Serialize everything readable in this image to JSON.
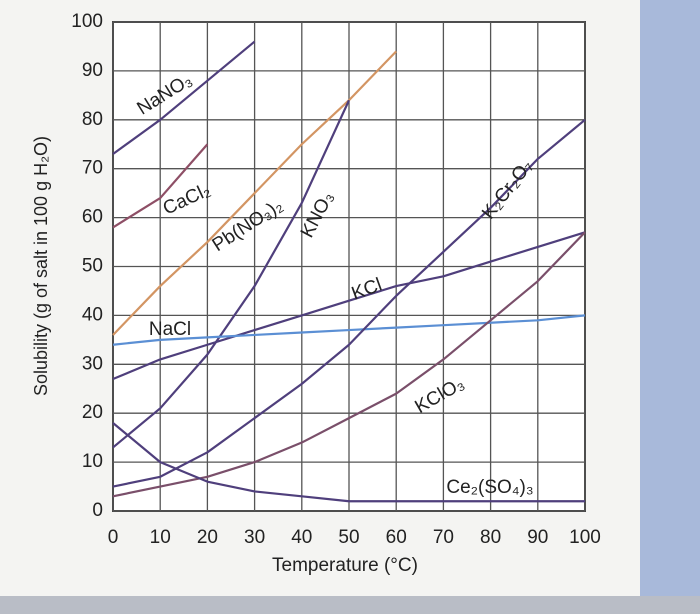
{
  "chart_data": {
    "type": "line",
    "x_label": "Temperature (°C)",
    "y_label": "Solubility (g of salt in 100 g H₂O)",
    "x": [
      0,
      10,
      20,
      30,
      40,
      50,
      60,
      70,
      80,
      90,
      100
    ],
    "xlim": [
      0,
      100
    ],
    "ylim": [
      0,
      100
    ],
    "xticks": [
      0,
      10,
      20,
      30,
      40,
      50,
      60,
      70,
      80,
      90,
      100
    ],
    "yticks": [
      0,
      10,
      20,
      30,
      40,
      50,
      60,
      70,
      80,
      90,
      100
    ],
    "grid": true,
    "series": [
      {
        "name": "NaNO₃",
        "color": "#4f3f7c",
        "values": [
          73,
          80,
          88,
          96,
          null,
          null,
          null,
          null,
          null,
          null,
          null
        ]
      },
      {
        "name": "CaCl₂",
        "color": "#8e4f66",
        "values": [
          58,
          64,
          75,
          null,
          null,
          null,
          null,
          null,
          null,
          null,
          null
        ]
      },
      {
        "name": "Pb(NO₃)₂",
        "color": "#d39563",
        "values": [
          36,
          46,
          55,
          65,
          75,
          84,
          94,
          null,
          null,
          null,
          null
        ]
      },
      {
        "name": "KNO₃",
        "color": "#4f3f7c",
        "values": [
          13,
          21,
          32,
          46,
          63,
          84,
          null,
          null,
          null,
          null,
          null
        ]
      },
      {
        "name": "KCl",
        "color": "#4f3f7c",
        "values": [
          27,
          31,
          34,
          37,
          40,
          43,
          46,
          48,
          51,
          54,
          57
        ]
      },
      {
        "name": "NaCl",
        "color": "#5b8fd4",
        "values": [
          34,
          35,
          35.5,
          36,
          36.5,
          37,
          37.5,
          38,
          38.5,
          39,
          40
        ]
      },
      {
        "name": "K₂Cr₂O₇",
        "color": "#4f3f7c",
        "values": [
          5,
          7,
          12,
          19,
          26,
          34,
          44,
          53,
          62,
          72,
          80
        ]
      },
      {
        "name": "KClO₃",
        "color": "#7a4f6a",
        "values": [
          3,
          5,
          7,
          10,
          14,
          19,
          24,
          31,
          39,
          47,
          57
        ]
      },
      {
        "name": "Ce₂(SO₄)₃",
        "color": "#4f3f7c",
        "values": [
          18,
          10,
          6,
          4,
          3,
          2,
          2,
          2,
          2,
          2,
          2
        ]
      }
    ]
  }
}
